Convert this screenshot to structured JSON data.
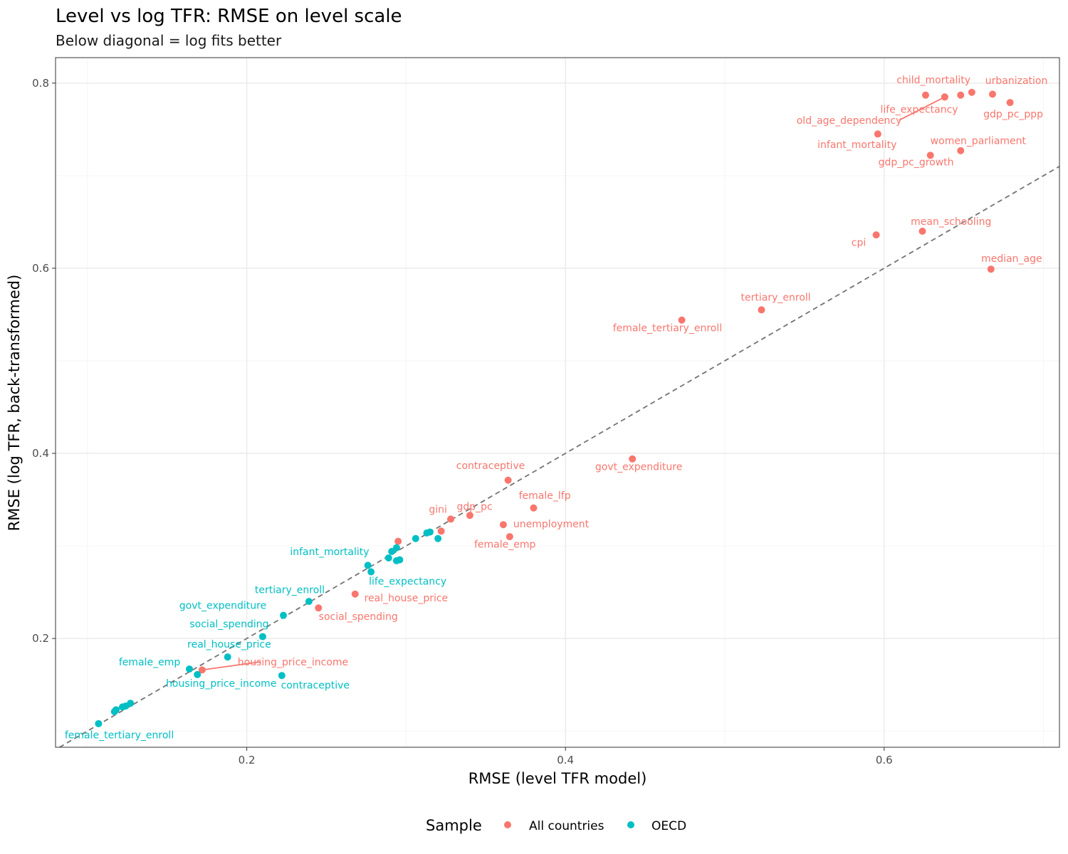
{
  "colors": {
    "all_countries": "#F8766D",
    "oecd": "#00BFC4",
    "diagonal": "#737373",
    "grid_major": "#ebebeb",
    "grid_minor": "#f5f5f5",
    "frame": "#333333"
  },
  "chart_data": {
    "type": "scatter",
    "title": "Level vs log TFR: RMSE on level scale",
    "subtitle": "Below diagonal = log fits better",
    "xlabel": "RMSE (level TFR model)",
    "ylabel": "RMSE (log TFR, back-transformed)",
    "xlim": [
      0.08,
      0.71
    ],
    "ylim": [
      0.0825,
      0.8275
    ],
    "xticks": [
      0.2,
      0.4,
      0.6
    ],
    "yticks": [
      0.2,
      0.4,
      0.6,
      0.8
    ],
    "xtick_labels": [
      "0.2",
      "0.4",
      "0.6"
    ],
    "ytick_labels": [
      "0.2",
      "0.4",
      "0.6",
      "0.8"
    ],
    "reference_line": "y = x (dashed diagonal)",
    "legend": {
      "title": "Sample",
      "position": "bottom",
      "entries": [
        "All countries",
        "OECD"
      ]
    },
    "series": [
      {
        "name": "All countries",
        "color_key": "all_countries",
        "points": [
          {
            "label": "child_mortality",
            "x": 0.638,
            "y": 0.785,
            "lx": 0.631,
            "ly": 0.8,
            "anchor": "middle",
            "leader": false
          },
          {
            "label": "urbanization",
            "x": 0.655,
            "y": 0.79,
            "lx": 0.683,
            "ly": 0.799,
            "anchor": "middle",
            "leader": false
          },
          {
            "label": "",
            "x": 0.648,
            "y": 0.787
          },
          {
            "label": "",
            "x": 0.668,
            "y": 0.788
          },
          {
            "label": "gdp_pc_ppp",
            "x": 0.679,
            "y": 0.779,
            "lx": 0.681,
            "ly": 0.763,
            "anchor": "middle",
            "leader": false
          },
          {
            "label": "life_expectancy",
            "x": 0.626,
            "y": 0.787,
            "lx": 0.622,
            "ly": 0.768,
            "anchor": "middle",
            "leader": false
          },
          {
            "label": "old_age_dependency",
            "x": 0.638,
            "y": 0.785,
            "lx": 0.578,
            "ly": 0.756,
            "anchor": "middle",
            "leader": true
          },
          {
            "label": "infant_mortality",
            "x": 0.596,
            "y": 0.745,
            "lx": 0.583,
            "ly": 0.73,
            "anchor": "middle",
            "leader": false
          },
          {
            "label": "women_parliament",
            "x": 0.648,
            "y": 0.727,
            "lx": 0.659,
            "ly": 0.734,
            "anchor": "middle",
            "leader": false
          },
          {
            "label": "gdp_pc_growth",
            "x": 0.629,
            "y": 0.722,
            "lx": 0.62,
            "ly": 0.711,
            "anchor": "middle",
            "leader": false
          },
          {
            "label": "mean_schooling",
            "x": 0.624,
            "y": 0.64,
            "lx": 0.642,
            "ly": 0.647,
            "anchor": "middle",
            "leader": false
          },
          {
            "label": "cpi",
            "x": 0.595,
            "y": 0.636,
            "lx": 0.584,
            "ly": 0.624,
            "anchor": "middle",
            "leader": false
          },
          {
            "label": "median_age",
            "x": 0.667,
            "y": 0.599,
            "lx": 0.68,
            "ly": 0.607,
            "anchor": "middle",
            "leader": false
          },
          {
            "label": "tertiary_enroll",
            "x": 0.523,
            "y": 0.555,
            "lx": 0.532,
            "ly": 0.565,
            "anchor": "middle",
            "leader": false
          },
          {
            "label": "female_tertiary_enroll",
            "x": 0.473,
            "y": 0.544,
            "lx": 0.464,
            "ly": 0.532,
            "anchor": "middle",
            "leader": false
          },
          {
            "label": "govt_expenditure",
            "x": 0.442,
            "y": 0.394,
            "lx": 0.446,
            "ly": 0.382,
            "anchor": "middle",
            "leader": false
          },
          {
            "label": "contraceptive",
            "x": 0.364,
            "y": 0.371,
            "lx": 0.353,
            "ly": 0.383,
            "anchor": "middle",
            "leader": false
          },
          {
            "label": "female_lfp",
            "x": 0.38,
            "y": 0.341,
            "lx": 0.387,
            "ly": 0.351,
            "anchor": "middle",
            "leader": false
          },
          {
            "label": "gdp_pc",
            "x": 0.34,
            "y": 0.333,
            "lx": 0.343,
            "ly": 0.339,
            "anchor": "middle",
            "leader": false
          },
          {
            "label": "gini",
            "x": 0.328,
            "y": 0.329,
            "lx": 0.32,
            "ly": 0.336,
            "anchor": "middle",
            "leader": false
          },
          {
            "label": "unemployment",
            "x": 0.361,
            "y": 0.323,
            "lx": 0.391,
            "ly": 0.32,
            "anchor": "middle",
            "leader": false
          },
          {
            "label": "",
            "x": 0.322,
            "y": 0.316
          },
          {
            "label": "female_emp",
            "x": 0.365,
            "y": 0.31,
            "lx": 0.362,
            "ly": 0.298,
            "anchor": "middle",
            "leader": false
          },
          {
            "label": "",
            "x": 0.295,
            "y": 0.305
          },
          {
            "label": "real_house_price",
            "x": 0.268,
            "y": 0.248,
            "lx": 0.3,
            "ly": 0.24,
            "anchor": "middle",
            "leader": false
          },
          {
            "label": "social_spending",
            "x": 0.245,
            "y": 0.233,
            "lx": 0.27,
            "ly": 0.22,
            "anchor": "middle",
            "leader": false
          },
          {
            "label": "housing_price_income",
            "x": 0.172,
            "y": 0.166,
            "lx": 0.229,
            "ly": 0.171,
            "anchor": "middle",
            "leader": true
          }
        ]
      },
      {
        "name": "OECD",
        "color_key": "oecd",
        "points": [
          {
            "label": "infant_mortality",
            "x": 0.276,
            "y": 0.279,
            "lx": 0.252,
            "ly": 0.29,
            "anchor": "middle",
            "leader": false
          },
          {
            "label": "life_expectancy",
            "x": 0.278,
            "y": 0.272,
            "lx": 0.301,
            "ly": 0.258,
            "anchor": "middle",
            "leader": false
          },
          {
            "label": "",
            "x": 0.294,
            "y": 0.298
          },
          {
            "label": "",
            "x": 0.291,
            "y": 0.294
          },
          {
            "label": "",
            "x": 0.289,
            "y": 0.287
          },
          {
            "label": "",
            "x": 0.294,
            "y": 0.284
          },
          {
            "label": "",
            "x": 0.296,
            "y": 0.285
          },
          {
            "label": "",
            "x": 0.306,
            "y": 0.308
          },
          {
            "label": "",
            "x": 0.313,
            "y": 0.314
          },
          {
            "label": "",
            "x": 0.315,
            "y": 0.315
          },
          {
            "label": "",
            "x": 0.32,
            "y": 0.308
          },
          {
            "label": "tertiary_enroll",
            "x": 0.239,
            "y": 0.24,
            "lx": 0.227,
            "ly": 0.249,
            "anchor": "middle",
            "leader": false
          },
          {
            "label": "govt_expenditure",
            "x": 0.223,
            "y": 0.225,
            "lx": 0.185,
            "ly": 0.232,
            "anchor": "middle",
            "leader": false
          },
          {
            "label": "social_spending",
            "x": 0.21,
            "y": 0.202,
            "lx": 0.189,
            "ly": 0.212,
            "anchor": "middle",
            "leader": false
          },
          {
            "label": "real_house_price",
            "x": 0.188,
            "y": 0.18,
            "lx": 0.189,
            "ly": 0.19,
            "anchor": "middle",
            "leader": false
          },
          {
            "label": "female_emp",
            "x": 0.164,
            "y": 0.167,
            "lx": 0.139,
            "ly": 0.171,
            "anchor": "middle",
            "leader": false
          },
          {
            "label": "housing_price_income",
            "x": 0.169,
            "y": 0.161,
            "lx": 0.184,
            "ly": 0.148,
            "anchor": "middle",
            "leader": false
          },
          {
            "label": "contraceptive",
            "x": 0.222,
            "y": 0.16,
            "lx": 0.243,
            "ly": 0.146,
            "anchor": "middle",
            "leader": false
          },
          {
            "label": "",
            "x": 0.127,
            "y": 0.13
          },
          {
            "label": "",
            "x": 0.124,
            "y": 0.127
          },
          {
            "label": "",
            "x": 0.122,
            "y": 0.126
          },
          {
            "label": "",
            "x": 0.118,
            "y": 0.123
          },
          {
            "label": "",
            "x": 0.117,
            "y": 0.121
          },
          {
            "label": "female_tertiary_enroll",
            "x": 0.107,
            "y": 0.108,
            "lx": 0.12,
            "ly": 0.092,
            "anchor": "middle",
            "leader": false
          }
        ]
      }
    ]
  }
}
